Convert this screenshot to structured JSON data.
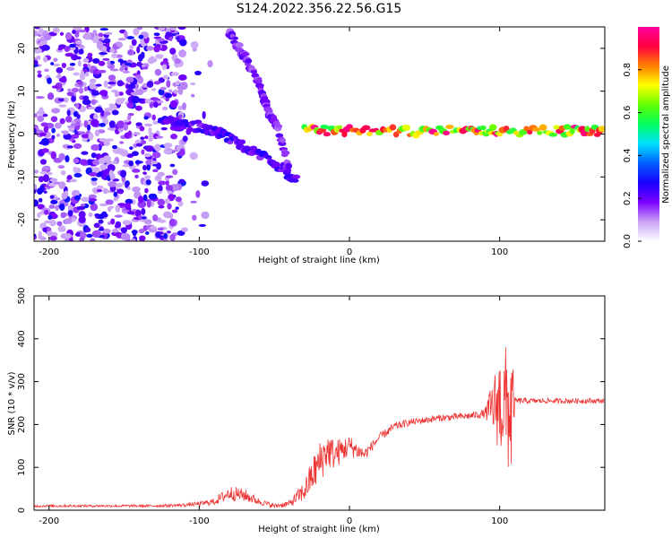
{
  "figure": {
    "title": "S124.2022.356.22.56.G15"
  },
  "chart_data": [
    {
      "type": "heatmap",
      "xlabel": "Height of straight line (km)",
      "ylabel": "Frequency (Hz)",
      "xlim": [
        -210,
        170
      ],
      "ylim": [
        -25,
        25
      ],
      "xticks": [
        -200,
        -100,
        0,
        100
      ],
      "yticks": [
        -20,
        -10,
        0,
        10,
        20
      ],
      "colorbar": {
        "label": "Normalized spectral amplitude",
        "range": [
          0,
          1
        ],
        "ticks": [
          0.0,
          0.2,
          0.4,
          0.6,
          0.8
        ],
        "colormap": [
          "#ffffff",
          "#c9a3f5",
          "#7a00ff",
          "#1a00ff",
          "#0060ff",
          "#00e0ff",
          "#00ff60",
          "#60ff00",
          "#ffff00",
          "#ff8000",
          "#ff0040",
          "#ff00a0"
        ]
      },
      "features": [
        {
          "name": "diagonal band",
          "x": [
            -125,
            -105,
            -85,
            -65,
            -45,
            -35
          ],
          "y": [
            3,
            2,
            0,
            -4,
            -8,
            -11
          ],
          "amplitude": 0.25
        },
        {
          "name": "steep band",
          "x": [
            -80,
            -70,
            -60,
            -55,
            -48,
            -40
          ],
          "y": [
            24,
            18,
            12,
            6,
            2,
            -8
          ],
          "amplitude": 0.2
        },
        {
          "name": "near-zero line",
          "x": [
            -30,
            0,
            40,
            80,
            100,
            140,
            170
          ],
          "y": [
            1,
            0.8,
            0.5,
            1.5,
            0.5,
            0.8,
            0.8
          ],
          "amplitude": 0.9
        }
      ]
    },
    {
      "type": "line",
      "xlabel": "Height of straight line (km)",
      "ylabel": "SNR (10 * v/v)",
      "xlim": [
        -210,
        170
      ],
      "ylim": [
        0,
        500
      ],
      "xticks": [
        -200,
        -100,
        0,
        100
      ],
      "yticks": [
        0,
        100,
        200,
        300,
        400,
        500
      ],
      "series": [
        {
          "color": "#ee3333",
          "x": [
            -210,
            -190,
            -170,
            -150,
            -130,
            -110,
            -100,
            -90,
            -80,
            -70,
            -60,
            -50,
            -40,
            -30,
            -25,
            -20,
            -15,
            -10,
            -5,
            0,
            5,
            10,
            15,
            20,
            30,
            40,
            60,
            80,
            90,
            95,
            100,
            105,
            108,
            110,
            120,
            140,
            170
          ],
          "y": [
            10,
            10,
            10,
            10,
            10,
            12,
            15,
            20,
            40,
            35,
            20,
            10,
            15,
            45,
            80,
            110,
            140,
            130,
            140,
            150,
            140,
            130,
            150,
            170,
            195,
            205,
            215,
            220,
            225,
            240,
            250,
            240,
            230,
            255,
            255,
            255,
            255
          ],
          "noise": [
            3,
            3,
            3,
            3,
            3,
            4,
            5,
            8,
            18,
            15,
            8,
            5,
            8,
            25,
            40,
            50,
            45,
            35,
            30,
            25,
            20,
            15,
            12,
            10,
            10,
            8,
            8,
            8,
            10,
            60,
            120,
            150,
            180,
            8,
            6,
            6,
            6
          ]
        }
      ]
    }
  ]
}
